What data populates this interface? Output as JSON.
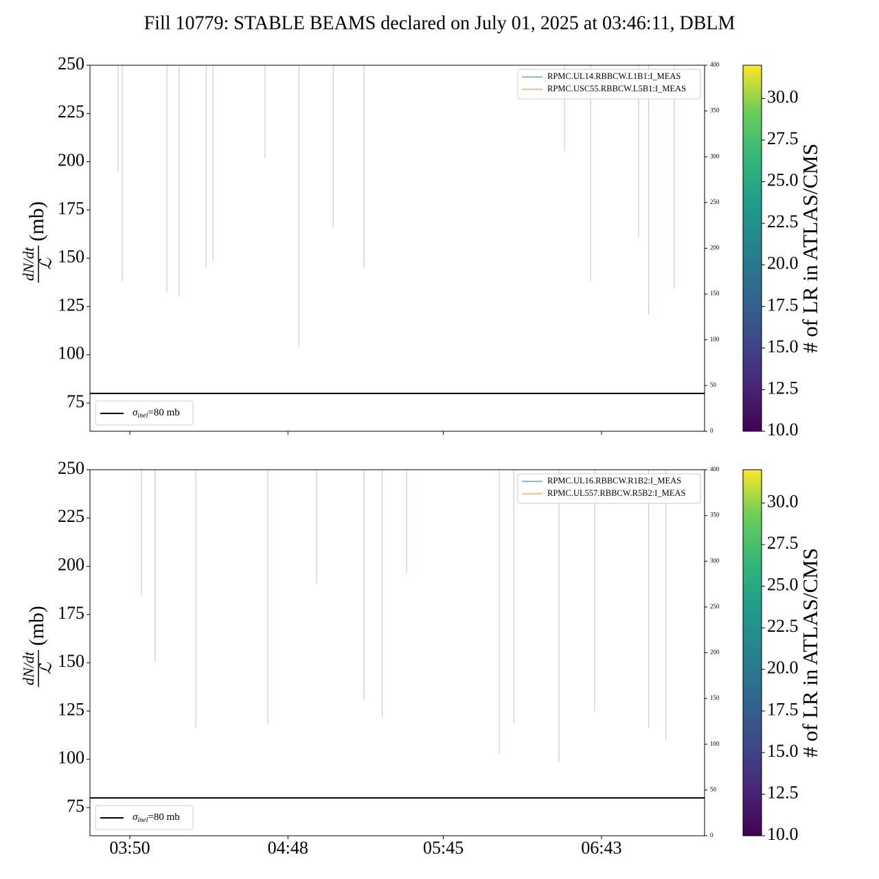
{
  "suptitle": "Fill 10779: STABLE BEAMS declared on July 01, 2025 at 03:46:11, DBLM",
  "chart_data": [
    {
      "type": "line",
      "ylabel": {
        "numerator": "dN/dt",
        "denominator": "ℒ",
        "unit": "(mb)"
      },
      "xlim": [
        215.4,
        440.8
      ],
      "xticks": [
        230,
        288,
        345,
        403
      ],
      "ylim": [
        60.4,
        250
      ],
      "yticks": [
        75,
        100,
        125,
        150,
        175,
        200,
        225,
        250
      ],
      "y2lim": [
        0,
        400
      ],
      "y2ticks": [
        0,
        50,
        100,
        150,
        200,
        250,
        300,
        350,
        400
      ],
      "spikes": {
        "color": "#cbbcd9",
        "x": [
          225.7,
          227.2,
          243.6,
          248.1,
          258,
          260.5,
          279.6,
          292,
          304.6,
          315.9,
          389.4,
          399,
          416.6,
          420.3,
          429.7
        ],
        "values": [
          195,
          138,
          132.6,
          130,
          145,
          148.6,
          202,
          104,
          166,
          145,
          205.5,
          138,
          161,
          121,
          134.4
        ]
      },
      "hline": {
        "value": 80,
        "color": "#000000",
        "label": {
          "symbol": "σ",
          "subscript": "inel",
          "text": "=80 mb"
        }
      },
      "series": [
        {
          "name": "RPMC.UL14.RBBCW.L1B1:I_MEAS",
          "color": "#1f77b4",
          "axis": "y2",
          "x": [
            225.7,
            430
          ],
          "values": [
            0,
            0
          ]
        },
        {
          "name": "RPMC.USC55.RBBCW.L5B1:I_MEAS",
          "color": "#ff7f0e",
          "axis": "y2",
          "x": [
            225.7,
            430
          ],
          "values": [
            0,
            0
          ]
        }
      ],
      "colorbar": {
        "label": "# of LR in ATLAS/CMS",
        "lim": [
          10,
          32
        ],
        "ticks": [
          {
            "value": 10,
            "label": "10.0"
          },
          {
            "value": 12.5,
            "label": "12.5"
          },
          {
            "value": 15,
            "label": "15.0"
          },
          {
            "value": 17.5,
            "label": "17.5"
          },
          {
            "value": 20,
            "label": "20.0"
          },
          {
            "value": 22.5,
            "label": "22.5"
          },
          {
            "value": 25,
            "label": "25.0"
          },
          {
            "value": 27.5,
            "label": "27.5"
          },
          {
            "value": 30,
            "label": "30.0"
          }
        ]
      }
    },
    {
      "type": "line",
      "ylabel": {
        "numerator": "dN/dt",
        "denominator": "ℒ",
        "unit": "(mb)"
      },
      "xlim": [
        215.4,
        440.8
      ],
      "xticks": [
        {
          "value": 230,
          "label": "03:50"
        },
        {
          "value": 288,
          "label": "04:48"
        },
        {
          "value": 345,
          "label": "05:45"
        },
        {
          "value": 403,
          "label": "06:43"
        }
      ],
      "ylim": [
        60.4,
        250
      ],
      "yticks": [
        75,
        100,
        125,
        150,
        175,
        200,
        225,
        250
      ],
      "y2lim": [
        0,
        400
      ],
      "y2ticks": [
        0,
        50,
        100,
        150,
        200,
        250,
        300,
        350,
        400
      ],
      "spikes": {
        "color": "#cbbcd9",
        "x": [
          234.3,
          239.3,
          254.2,
          280.6,
          298.5,
          315.9,
          322.6,
          331.5,
          365.5,
          370.8,
          387.4,
          400.5,
          420.3,
          426.6
        ],
        "values": [
          185,
          150.4,
          116.2,
          118,
          191,
          130.5,
          122.3,
          196.6,
          103,
          119,
          98.5,
          124.8,
          116.2,
          110
        ]
      },
      "hline": {
        "value": 80,
        "color": "#000000",
        "label": {
          "symbol": "σ",
          "subscript": "inel",
          "text": "=80 mb"
        }
      },
      "series": [
        {
          "name": "RPMC.UL16.RBBCW.R1B2:I_MEAS",
          "color": "#1f77b4",
          "axis": "y2",
          "x": [],
          "values": []
        },
        {
          "name": "RPMC.UL557.RBBCW.R5B2:I_MEAS",
          "color": "#ff7f0e",
          "axis": "y2",
          "x": [],
          "values": []
        }
      ],
      "colorbar": {
        "label": "# of LR in ATLAS/CMS",
        "lim": [
          10,
          32
        ],
        "ticks": [
          {
            "value": 10,
            "label": "10.0"
          },
          {
            "value": 12.5,
            "label": "12.5"
          },
          {
            "value": 15,
            "label": "15.0"
          },
          {
            "value": 17.5,
            "label": "17.5"
          },
          {
            "value": 20,
            "label": "20.0"
          },
          {
            "value": 22.5,
            "label": "22.5"
          },
          {
            "value": 25,
            "label": "25.0"
          },
          {
            "value": 27.5,
            "label": "27.5"
          },
          {
            "value": 30,
            "label": "30.0"
          }
        ]
      }
    }
  ]
}
